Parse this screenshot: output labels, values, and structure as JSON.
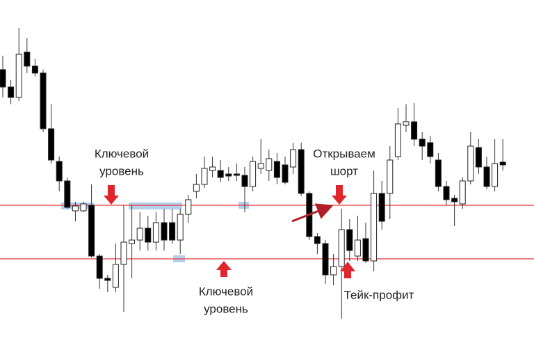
{
  "chart_data": {
    "type": "candlestick",
    "ylim": [
      0,
      498
    ],
    "up_color": "#ffffff",
    "down_color": "#000000",
    "wick_color": "#333333",
    "levels": [
      203,
      126
    ],
    "level_color": "#e8383d",
    "annotations": [
      {
        "lines": [
          "Ключевой",
          "уровень"
        ]
      },
      {
        "lines": [
          "Открываем",
          "шорт"
        ]
      },
      {
        "lines": [
          "Ключевой",
          "уровень"
        ]
      },
      {
        "lines": [
          "Тейк-профит"
        ]
      }
    ],
    "open": [
      398,
      373,
      358,
      423,
      403,
      393,
      313,
      266,
      238,
      195,
      195,
      203,
      130,
      98,
      85,
      118,
      148,
      153,
      170,
      150,
      178,
      178,
      153,
      190,
      223,
      233,
      253,
      253,
      248,
      248,
      246,
      230,
      256,
      253,
      266,
      261,
      258,
      283,
      220,
      158,
      148,
      103,
      115,
      168,
      130,
      155,
      123,
      220,
      220,
      273,
      318,
      323,
      298,
      293,
      268,
      230,
      213,
      205,
      238,
      286,
      258,
      230,
      265
    ],
    "high": [
      418,
      383,
      458,
      443,
      413,
      398,
      348,
      273,
      243,
      208,
      208,
      233,
      133,
      103,
      148,
      203,
      203,
      193,
      188,
      193,
      198,
      198,
      198,
      218,
      248,
      273,
      273,
      268,
      258,
      263,
      258,
      273,
      298,
      283,
      278,
      273,
      293,
      293,
      223,
      163,
      153,
      133,
      198,
      183,
      188,
      178,
      253,
      238,
      288,
      343,
      348,
      350,
      308,
      303,
      278,
      238,
      218,
      243,
      308,
      298,
      273,
      298,
      298
    ],
    "low": [
      358,
      348,
      353,
      393,
      388,
      308,
      263,
      223,
      198,
      180,
      193,
      128,
      83,
      78,
      78,
      50,
      98,
      138,
      138,
      138,
      138,
      148,
      133,
      178,
      213,
      228,
      243,
      236,
      238,
      238,
      193,
      223,
      248,
      238,
      233,
      233,
      248,
      216,
      153,
      133,
      90,
      88,
      40,
      123,
      123,
      120,
      108,
      168,
      183,
      268,
      308,
      288,
      268,
      263,
      223,
      203,
      173,
      198,
      233,
      248,
      226,
      223,
      253
    ],
    "close": [
      373,
      358,
      420,
      403,
      393,
      313,
      268,
      238,
      200,
      202,
      205,
      130,
      98,
      95,
      118,
      150,
      153,
      170,
      150,
      178,
      153,
      153,
      190,
      211,
      233,
      256,
      258,
      243,
      245,
      246,
      230,
      266,
      263,
      270,
      243,
      236,
      283,
      220,
      158,
      148,
      103,
      115,
      168,
      138,
      153,
      123,
      220,
      180,
      268,
      320,
      323,
      298,
      288,
      273,
      230,
      211,
      208,
      238,
      288,
      258,
      230,
      263,
      261
    ]
  }
}
